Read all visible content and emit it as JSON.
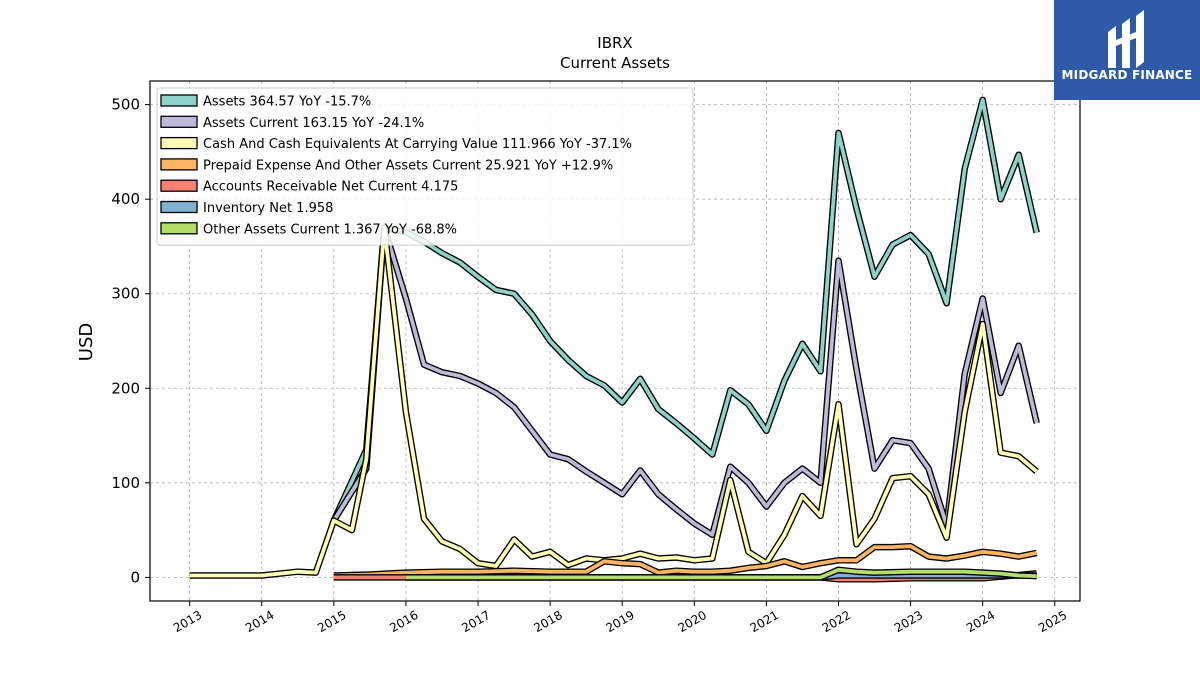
{
  "logo": {
    "text": "MIDGARD FINANCE",
    "icon": "midgard-logo-icon",
    "color": "#2f5aa8"
  },
  "chart_data": {
    "type": "line",
    "title": "IBRX",
    "subtitle": "Current  Assets",
    "ylabel": "USD",
    "xlabel": "",
    "xlim": [
      2012.45,
      2025.35
    ],
    "ylim": [
      -25,
      525
    ],
    "x_ticks": [
      2013,
      2014,
      2015,
      2016,
      2017,
      2018,
      2019,
      2020,
      2021,
      2022,
      2023,
      2024,
      2025
    ],
    "y_ticks": [
      0,
      100,
      200,
      300,
      400,
      500
    ],
    "grid": true,
    "legend_position": "top-left",
    "series": [
      {
        "name": "Assets  364.57 YoY -15.7%",
        "color": "#8dd3c7",
        "points": [
          [
            2015.0,
            60
          ],
          [
            2015.45,
            135
          ],
          [
            2015.7,
            370
          ],
          [
            2016.0,
            365
          ],
          [
            2016.25,
            355
          ],
          [
            2016.5,
            343
          ],
          [
            2016.75,
            333
          ],
          [
            2017.0,
            318
          ],
          [
            2017.25,
            304
          ],
          [
            2017.5,
            300
          ],
          [
            2017.75,
            278
          ],
          [
            2018.0,
            250
          ],
          [
            2018.25,
            230
          ],
          [
            2018.5,
            213
          ],
          [
            2018.75,
            203
          ],
          [
            2019.0,
            185
          ],
          [
            2019.25,
            210
          ],
          [
            2019.5,
            178
          ],
          [
            2019.75,
            163
          ],
          [
            2020.0,
            147
          ],
          [
            2020.25,
            130
          ],
          [
            2020.5,
            198
          ],
          [
            2020.75,
            183
          ],
          [
            2021.0,
            155
          ],
          [
            2021.25,
            208
          ],
          [
            2021.5,
            247
          ],
          [
            2021.75,
            218
          ],
          [
            2022.0,
            470
          ],
          [
            2022.25,
            390
          ],
          [
            2022.5,
            318
          ],
          [
            2022.75,
            352
          ],
          [
            2023.0,
            362
          ],
          [
            2023.25,
            342
          ],
          [
            2023.5,
            290
          ],
          [
            2023.75,
            432
          ],
          [
            2024.0,
            505
          ],
          [
            2024.25,
            400
          ],
          [
            2024.5,
            447
          ],
          [
            2024.75,
            364.57
          ]
        ]
      },
      {
        "name": "Assets Current  163.15 YoY -24.1%",
        "color": "#bebada",
        "points": [
          [
            2015.0,
            60
          ],
          [
            2015.45,
            115
          ],
          [
            2015.7,
            370
          ],
          [
            2016.0,
            295
          ],
          [
            2016.25,
            225
          ],
          [
            2016.5,
            217
          ],
          [
            2016.75,
            213
          ],
          [
            2017.0,
            205
          ],
          [
            2017.25,
            195
          ],
          [
            2017.5,
            180
          ],
          [
            2017.75,
            155
          ],
          [
            2018.0,
            130
          ],
          [
            2018.25,
            125
          ],
          [
            2018.5,
            112
          ],
          [
            2018.75,
            100
          ],
          [
            2019.0,
            88
          ],
          [
            2019.25,
            113
          ],
          [
            2019.5,
            88
          ],
          [
            2019.75,
            72
          ],
          [
            2020.0,
            57
          ],
          [
            2020.25,
            45
          ],
          [
            2020.5,
            117
          ],
          [
            2020.75,
            100
          ],
          [
            2021.0,
            75
          ],
          [
            2021.25,
            100
          ],
          [
            2021.5,
            115
          ],
          [
            2021.75,
            100
          ],
          [
            2022.0,
            335
          ],
          [
            2022.25,
            220
          ],
          [
            2022.5,
            115
          ],
          [
            2022.75,
            145
          ],
          [
            2023.0,
            142
          ],
          [
            2023.25,
            115
          ],
          [
            2023.5,
            55
          ],
          [
            2023.75,
            215
          ],
          [
            2024.0,
            295
          ],
          [
            2024.25,
            195
          ],
          [
            2024.5,
            245
          ],
          [
            2024.75,
            163.15
          ]
        ]
      },
      {
        "name": "Cash And Cash Equivalents At Carrying Value  111.966 YoY -37.1%",
        "color": "#ffffb3",
        "points": [
          [
            2013.0,
            2
          ],
          [
            2014.0,
            2
          ],
          [
            2014.5,
            6
          ],
          [
            2014.75,
            5
          ],
          [
            2015.0,
            60
          ],
          [
            2015.25,
            50
          ],
          [
            2015.45,
            125
          ],
          [
            2015.7,
            370
          ],
          [
            2016.0,
            175
          ],
          [
            2016.25,
            62
          ],
          [
            2016.5,
            38
          ],
          [
            2016.75,
            30
          ],
          [
            2017.0,
            15
          ],
          [
            2017.25,
            12
          ],
          [
            2017.5,
            40
          ],
          [
            2017.75,
            22
          ],
          [
            2018.0,
            27
          ],
          [
            2018.25,
            13
          ],
          [
            2018.5,
            20
          ],
          [
            2018.75,
            18
          ],
          [
            2019.0,
            20
          ],
          [
            2019.25,
            25
          ],
          [
            2019.5,
            20
          ],
          [
            2019.75,
            21
          ],
          [
            2020.0,
            18
          ],
          [
            2020.25,
            20
          ],
          [
            2020.5,
            103
          ],
          [
            2020.75,
            27
          ],
          [
            2021.0,
            15
          ],
          [
            2021.25,
            45
          ],
          [
            2021.5,
            86
          ],
          [
            2021.75,
            65
          ],
          [
            2022.0,
            183
          ],
          [
            2022.25,
            35
          ],
          [
            2022.5,
            62
          ],
          [
            2022.75,
            105
          ],
          [
            2023.0,
            107
          ],
          [
            2023.25,
            88
          ],
          [
            2023.5,
            42
          ],
          [
            2023.75,
            175
          ],
          [
            2024.0,
            268
          ],
          [
            2024.25,
            132
          ],
          [
            2024.5,
            128
          ],
          [
            2024.75,
            111.966
          ]
        ]
      },
      {
        "name": "Prepaid Expense And Other Assets Current  25.921 YoY +12.9%",
        "color": "#fdb462",
        "points": [
          [
            2015.0,
            2
          ],
          [
            2015.5,
            3
          ],
          [
            2016.0,
            5
          ],
          [
            2016.5,
            6
          ],
          [
            2017.0,
            6
          ],
          [
            2017.5,
            7
          ],
          [
            2018.0,
            6
          ],
          [
            2018.5,
            6
          ],
          [
            2018.75,
            17
          ],
          [
            2019.0,
            15
          ],
          [
            2019.25,
            14
          ],
          [
            2019.5,
            5
          ],
          [
            2019.75,
            7
          ],
          [
            2020.0,
            6
          ],
          [
            2020.25,
            6
          ],
          [
            2020.5,
            7
          ],
          [
            2020.75,
            10
          ],
          [
            2021.0,
            12
          ],
          [
            2021.25,
            17
          ],
          [
            2021.5,
            11
          ],
          [
            2021.75,
            15
          ],
          [
            2022.0,
            18
          ],
          [
            2022.25,
            18
          ],
          [
            2022.5,
            32
          ],
          [
            2022.75,
            32
          ],
          [
            2023.0,
            33
          ],
          [
            2023.25,
            22
          ],
          [
            2023.5,
            20
          ],
          [
            2023.75,
            23
          ],
          [
            2024.0,
            27
          ],
          [
            2024.25,
            25
          ],
          [
            2024.5,
            22
          ],
          [
            2024.75,
            25.921
          ]
        ]
      },
      {
        "name": "Accounts Receivable Net Current  4.175",
        "color": "#fb8072",
        "points": [
          [
            2015.0,
            0
          ],
          [
            2016.0,
            0
          ],
          [
            2017.0,
            0
          ],
          [
            2018.0,
            0
          ],
          [
            2019.0,
            0
          ],
          [
            2020.0,
            0
          ],
          [
            2021.0,
            0
          ],
          [
            2021.75,
            0
          ],
          [
            2022.0,
            -2
          ],
          [
            2022.5,
            -2
          ],
          [
            2023.0,
            -1
          ],
          [
            2024.0,
            -1
          ],
          [
            2024.75,
            4.175
          ]
        ]
      },
      {
        "name": "Inventory Net  1.958",
        "color": "#80b1d3",
        "points": [
          [
            2016.0,
            0
          ],
          [
            2017.0,
            0
          ],
          [
            2018.0,
            0
          ],
          [
            2019.0,
            0
          ],
          [
            2020.0,
            0
          ],
          [
            2021.0,
            0
          ],
          [
            2021.75,
            0
          ],
          [
            2022.0,
            2
          ],
          [
            2023.0,
            2
          ],
          [
            2024.0,
            2
          ],
          [
            2024.75,
            1.958
          ]
        ]
      },
      {
        "name": "Other Assets Current  1.367 YoY -68.8%",
        "color": "#b3de69",
        "points": [
          [
            2016.0,
            0
          ],
          [
            2017.0,
            0
          ],
          [
            2018.0,
            0
          ],
          [
            2019.0,
            0
          ],
          [
            2020.0,
            0
          ],
          [
            2021.0,
            0
          ],
          [
            2021.75,
            0
          ],
          [
            2022.0,
            8
          ],
          [
            2022.25,
            6
          ],
          [
            2022.5,
            5
          ],
          [
            2023.0,
            6
          ],
          [
            2023.5,
            6
          ],
          [
            2023.75,
            6
          ],
          [
            2024.0,
            5
          ],
          [
            2024.25,
            4
          ],
          [
            2024.5,
            2
          ],
          [
            2024.75,
            1.367
          ]
        ]
      }
    ]
  }
}
